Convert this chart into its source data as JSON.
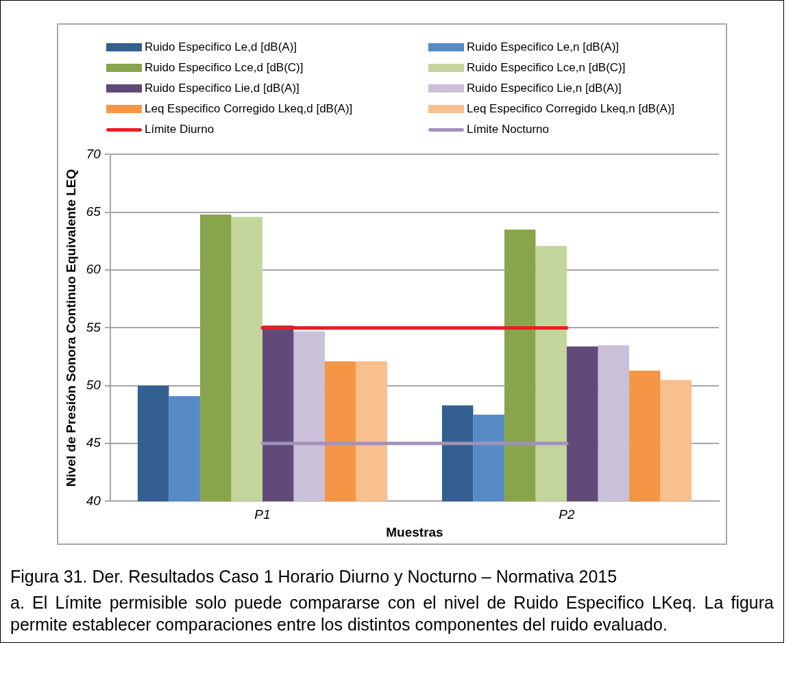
{
  "chart_data": {
    "type": "bar",
    "categories": [
      "P1",
      "P2"
    ],
    "xlabel": "Muestras",
    "ylabel": "Nivel de Presión Sonora Continuo Equivalente LEQ",
    "ylim": [
      40,
      70
    ],
    "yticks": [
      40,
      45,
      50,
      55,
      60,
      65,
      70
    ],
    "grid": "y",
    "legend": "top",
    "series": [
      {
        "name": "Ruido Especifico Le,d [dB(A)]",
        "color": "#335f91",
        "values": [
          50.0,
          48.3
        ]
      },
      {
        "name": "Ruido Especifico Le,n [dB(A)]",
        "color": "#578bc6",
        "values": [
          49.1,
          47.5
        ]
      },
      {
        "name": "Ruido Especifico Lce,d [dB(C)]",
        "color": "#89a54b",
        "values": [
          64.8,
          63.5
        ]
      },
      {
        "name": "Ruido Especifico Lce,n [dB(C)]",
        "color": "#c4d59c",
        "values": [
          64.6,
          62.1
        ]
      },
      {
        "name": "Ruido Especifico Lie,d [dB(A)]",
        "color": "#5f4a7a",
        "values": [
          55.2,
          53.4
        ]
      },
      {
        "name": "Ruido Especifico Lie,n [dB(A)]",
        "color": "#cbc0d9",
        "values": [
          54.7,
          53.5
        ]
      },
      {
        "name": "Leq Especifico Corregido Lkeq,d [dB(A)]",
        "color": "#f59647",
        "values": [
          52.1,
          51.3
        ]
      },
      {
        "name": "Leq Especifico Corregido Lkeq,n [dB(A)]",
        "color": "#f8bf8f",
        "values": [
          52.1,
          50.5
        ]
      },
      {
        "name": "Límite Diurno",
        "type": "line",
        "color": "#ed1c24",
        "values": [
          55,
          55
        ]
      },
      {
        "name": "Límite Nocturno",
        "type": "line",
        "color": "#a092b8",
        "values": [
          45,
          45
        ]
      }
    ],
    "annotations": [
      "Figura 31. Der. Resultados Caso 1 Horario Diurno y Nocturno – Normativa 2015",
      "a.  El Límite permisible solo puede compararse con el nivel de Ruido Especifico LKeq. La figura permite establecer comparaciones entre los distintos componentes del ruido evaluado."
    ]
  }
}
